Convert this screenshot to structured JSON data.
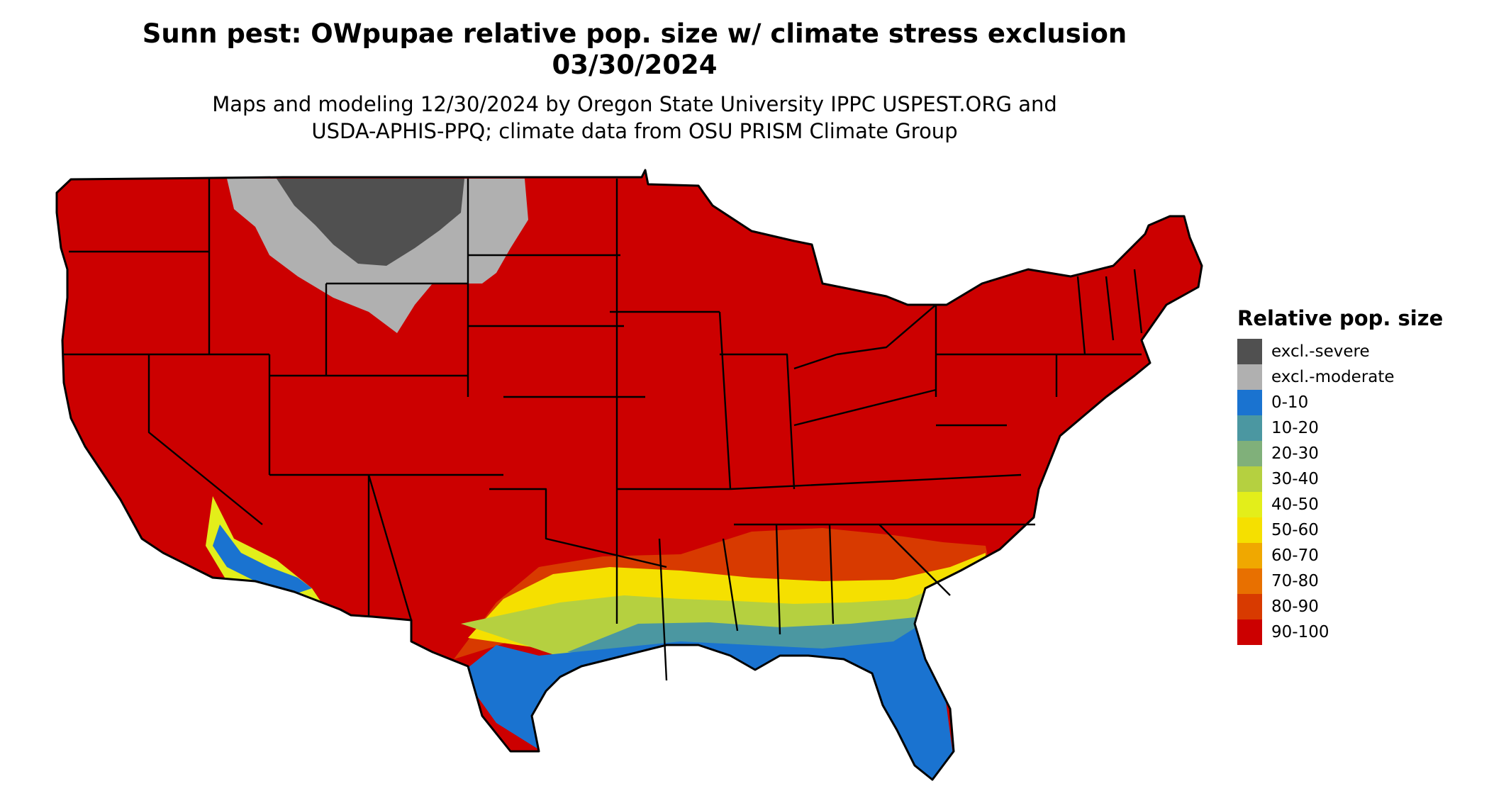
{
  "title": {
    "line1": "Sunn pest: OWpupae relative pop. size w/ climate stress exclusion",
    "line2": "03/30/2024"
  },
  "subtitle": {
    "line1": "Maps and modeling 12/30/2024 by Oregon State University IPPC USPEST.ORG and",
    "line2": "USDA-APHIS-PPQ; climate data from OSU PRISM Climate Group"
  },
  "legend": {
    "title": "Relative pop. size",
    "items": [
      {
        "label": "excl.-severe",
        "color": "#505050"
      },
      {
        "label": "excl.-moderate",
        "color": "#b0b0b0"
      },
      {
        "label": "0-10",
        "color": "#1a73d0"
      },
      {
        "label": "10-20",
        "color": "#4b97a1"
      },
      {
        "label": "20-30",
        "color": "#80b07a"
      },
      {
        "label": "30-40",
        "color": "#b5d040"
      },
      {
        "label": "40-50",
        "color": "#e3ee1a"
      },
      {
        "label": "50-60",
        "color": "#f5e000"
      },
      {
        "label": "60-70",
        "color": "#f0a800"
      },
      {
        "label": "70-80",
        "color": "#e87000"
      },
      {
        "label": "80-90",
        "color": "#d83a00"
      },
      {
        "label": "90-100",
        "color": "#cc0000"
      }
    ]
  },
  "map": {
    "region": "contiguous-united-states",
    "base_class": "90-100",
    "colors": {
      "excl_severe": "#505050",
      "excl_moderate": "#b0b0b0",
      "c0_10": "#1a73d0",
      "c10_20": "#4b97a1",
      "c30_40": "#b5d040",
      "c40_50": "#e3ee1a",
      "c50_60": "#f5e000",
      "c80_90": "#d83a00",
      "c90_100": "#cc0000",
      "border": "#000000"
    }
  }
}
